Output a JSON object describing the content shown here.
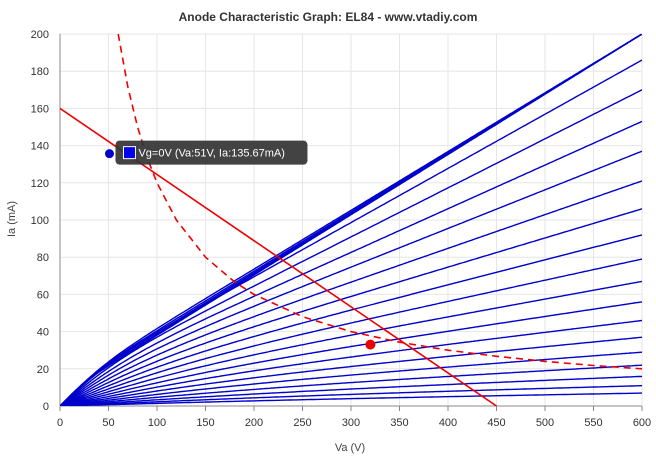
{
  "chart_data": {
    "type": "line",
    "title": "Anode Characteristic Graph: EL84 - www.vtadiy.com",
    "xlabel": "Va (V)",
    "ylabel": "Ia (mA)",
    "xlim": [
      0,
      600
    ],
    "ylim": [
      0,
      200
    ],
    "xticks": [
      "0",
      "50",
      "100",
      "150",
      "200",
      "250",
      "300",
      "350",
      "400",
      "450",
      "500",
      "550",
      "600"
    ],
    "yticks": [
      "0",
      "20",
      "40",
      "60",
      "80",
      "100",
      "120",
      "140",
      "160",
      "180",
      "200"
    ],
    "grid": true,
    "colors": {
      "curves": "#0000cc",
      "load_line": "#ee0000",
      "power_curve": "#ee0000",
      "operating_point": "#ee0000",
      "highlight_point": "#0000cc",
      "grid": "#e6e6e6",
      "tooltip_bg": "#333333"
    },
    "grid_curves": {
      "description_type": "family",
      "count": 22,
      "end_currents_at_600V": [
        200,
        200,
        200,
        200,
        200,
        186,
        170,
        153,
        137,
        121,
        106,
        92,
        79,
        67,
        56,
        46,
        37,
        29,
        22,
        16,
        11,
        7
      ],
      "knee_voltages": [
        25,
        28,
        33,
        39,
        47,
        55,
        64,
        74,
        85,
        97,
        110,
        124,
        138,
        152,
        167,
        182,
        198,
        215,
        232,
        250,
        268,
        286
      ]
    },
    "load_line": {
      "x": [
        0,
        450
      ],
      "y": [
        160,
        0
      ]
    },
    "max_dissipation_curve": {
      "x": [
        60,
        70,
        80,
        90,
        100,
        120,
        150,
        180,
        200,
        250,
        300,
        350,
        400,
        450,
        500,
        550,
        600
      ],
      "y": [
        200,
        171.4,
        150,
        133.3,
        120,
        100,
        80,
        66.7,
        60,
        48,
        40,
        34.3,
        30,
        26.7,
        24,
        21.8,
        20
      ]
    },
    "operating_point": {
      "x": 320,
      "y": 33
    },
    "highlight_point": {
      "x": 51,
      "y": 135.67
    },
    "tooltip": {
      "label": "Vg=0V (Va:51V, Ia:135.67mA)",
      "swatch_color": "#0000ee"
    }
  }
}
